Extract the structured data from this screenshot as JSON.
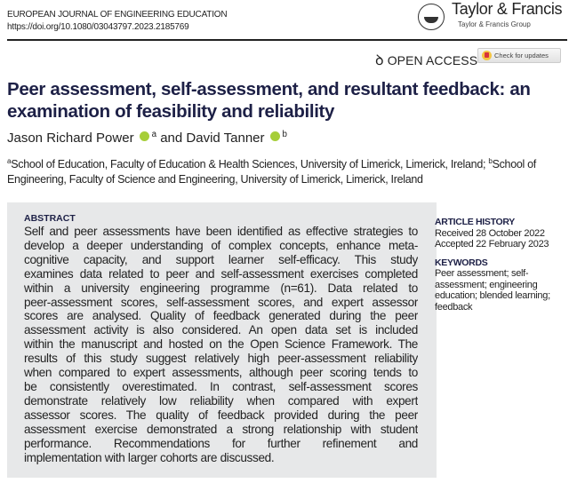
{
  "header": {
    "journal": "EUROPEAN JOURNAL OF ENGINEERING EDUCATION",
    "doi": "https://doi.org/10.1080/03043797.2023.2185769",
    "publisher": "Taylor & Francis",
    "publisher_group": "Taylor & Francis Group",
    "open_access": "OPEN ACCESS",
    "check_updates": "Check for updates"
  },
  "article": {
    "title": "Peer assessment, self-assessment, and resultant feedback: an examination of feasibility and reliability",
    "authors": [
      {
        "name": "Jason Richard Power",
        "affil": "a"
      },
      {
        "name": "David Tanner",
        "affil": "b"
      }
    ],
    "author_joiner": "and",
    "affiliations": [
      {
        "mark": "a",
        "text": "School of Education, Faculty of Education & Health Sciences, University of Limerick, Limerick, Ireland; "
      },
      {
        "mark": "b",
        "text": "School of Engineering, Faculty of Science and Engineering, University of Limerick, Limerick, Ireland"
      }
    ]
  },
  "abstract": {
    "heading": "ABSTRACT",
    "lines": [
      "Self and peer assessments have been identified as effective strategies to",
      "develop a deeper understanding of complex concepts, enhance meta-",
      "cognitive capacity, and support learner self-efficacy. This study",
      "examines data related to peer and self-assessment exercises completed",
      "within a university engineering programme (n=61). Data related to",
      "peer-assessment scores, self-assessment scores, and expert assessor",
      "scores are analysed. Quality of feedback generated during the peer",
      "assessment activity is also considered. An open data set is included",
      "within the manuscript and hosted on the Open Science Framework. The",
      "results of this study suggest relatively high peer-assessment reliability",
      "when compared to expert assessments, although peer scoring tends to",
      "be consistently overestimated. In contrast, self-assessment scores",
      "demonstrate relatively low reliability when compared with expert",
      "assessor scores. The quality of feedback provided during the peer",
      "assessment exercise demonstrated a strong relationship with student",
      "performance. Recommendations for further refinement and",
      "implementation with larger cohorts are discussed."
    ]
  },
  "sidebar": {
    "history_heading": "ARTICLE HISTORY",
    "received": "Received 28 October 2022",
    "accepted": "Accepted 22 February 2023",
    "keywords_heading": "KEYWORDS",
    "keywords_lines": [
      "Peer assessment; self-",
      "assessment; engineering",
      "education; blended learning;",
      "feedback"
    ]
  },
  "colors": {
    "title": "#1d2046",
    "abstract_bg": "#e7e8e9",
    "orcid": "#a6ce39"
  }
}
